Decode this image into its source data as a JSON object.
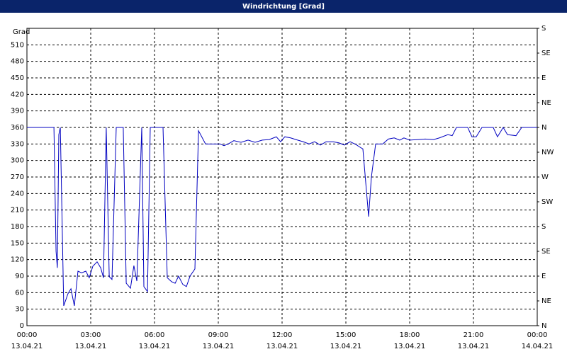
{
  "chart_data": {
    "type": "line",
    "title": "Windrichtung [Grad]",
    "ylabel": "Grad",
    "color": "#0000c0",
    "grid": true,
    "xlim": [
      0,
      24
    ],
    "ylim": [
      0,
      540
    ],
    "y2lim": [
      0,
      540
    ],
    "xticks": [
      {
        "value": 0,
        "label": "00:00"
      },
      {
        "value": 3,
        "label": "03:00"
      },
      {
        "value": 6,
        "label": "06:00"
      },
      {
        "value": 9,
        "label": "09:00"
      },
      {
        "value": 12,
        "label": "12:00"
      },
      {
        "value": 15,
        "label": "15:00"
      },
      {
        "value": 18,
        "label": "18:00"
      },
      {
        "value": 21,
        "label": "21:00"
      },
      {
        "value": 24,
        "label": "00:00"
      }
    ],
    "xtick_dates": [
      "13.04.21",
      "13.04.21",
      "13.04.21",
      "13.04.21",
      "13.04.21",
      "13.04.21",
      "13.04.21",
      "13.04.21",
      "14.04.21"
    ],
    "yticks": [
      0,
      30,
      60,
      90,
      120,
      150,
      180,
      210,
      240,
      270,
      300,
      330,
      360,
      390,
      420,
      450,
      480,
      510
    ],
    "y2ticks": [
      {
        "value": 0,
        "label": "N"
      },
      {
        "value": 45,
        "label": "NE"
      },
      {
        "value": 90,
        "label": "E"
      },
      {
        "value": 135,
        "label": "SE"
      },
      {
        "value": 180,
        "label": "S"
      },
      {
        "value": 225,
        "label": "SW"
      },
      {
        "value": 270,
        "label": "W"
      },
      {
        "value": 315,
        "label": "NW"
      },
      {
        "value": 360,
        "label": "N"
      },
      {
        "value": 405,
        "label": "NE"
      },
      {
        "value": 450,
        "label": "E"
      },
      {
        "value": 495,
        "label": "SE"
      },
      {
        "value": 540,
        "label": "S"
      }
    ],
    "x": [
      0,
      1.27,
      1.37,
      1.43,
      1.5,
      1.57,
      1.73,
      1.93,
      2.07,
      2.23,
      2.4,
      2.57,
      2.77,
      2.93,
      3.1,
      3.3,
      3.47,
      3.6,
      3.73,
      3.87,
      4.0,
      4.2,
      4.53,
      4.67,
      4.87,
      5.03,
      5.17,
      5.4,
      5.5,
      5.67,
      5.8,
      6.0,
      6.4,
      6.6,
      6.8,
      6.97,
      7.13,
      7.33,
      7.5,
      7.67,
      7.9,
      8.07,
      8.4,
      8.73,
      9.07,
      9.27,
      9.47,
      9.73,
      10.07,
      10.4,
      10.73,
      11.07,
      11.4,
      11.73,
      11.93,
      12.13,
      12.4,
      12.73,
      13.0,
      13.27,
      13.53,
      13.8,
      14.07,
      14.4,
      14.67,
      14.93,
      15.2,
      15.47,
      15.67,
      15.8,
      16.07,
      16.2,
      16.4,
      16.73,
      17.0,
      17.27,
      17.53,
      17.73,
      18.0,
      18.4,
      18.73,
      19.13,
      19.4,
      19.8,
      20.0,
      20.2,
      20.73,
      20.93,
      21.13,
      21.4,
      21.93,
      22.13,
      22.4,
      22.6,
      23.0,
      23.27,
      24
    ],
    "values": [
      360,
      360,
      135,
      105,
      347,
      360,
      36,
      58,
      67,
      36,
      99,
      96,
      99,
      87,
      108,
      116,
      105,
      87,
      360,
      89,
      84,
      360,
      360,
      77,
      68,
      109,
      81,
      360,
      71,
      62,
      360,
      360,
      360,
      87,
      80,
      77,
      90,
      75,
      71,
      90,
      103,
      354,
      330,
      330,
      330,
      327,
      330,
      336,
      333,
      337,
      333,
      337,
      338,
      343,
      334,
      343,
      341,
      337,
      334,
      330,
      334,
      328,
      334,
      334,
      332,
      328,
      334,
      329,
      324,
      321,
      198,
      270,
      330,
      330,
      339,
      341,
      337,
      341,
      337,
      338,
      339,
      338,
      341,
      347,
      345,
      360,
      360,
      343,
      343,
      360,
      360,
      343,
      360,
      347,
      345,
      360,
      360
    ]
  }
}
